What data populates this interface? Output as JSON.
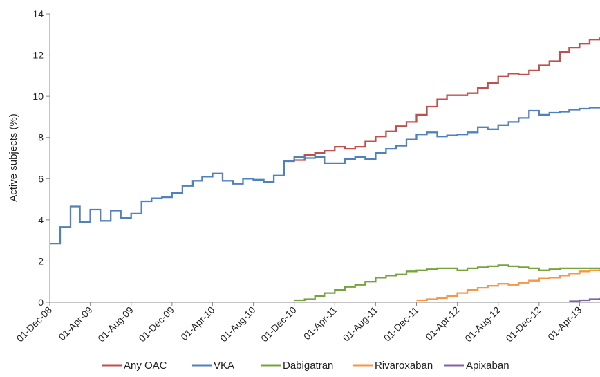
{
  "chart_data": {
    "type": "line",
    "step": true,
    "title": "",
    "xlabel": "",
    "ylabel": "Active subjects (%)",
    "ylim": [
      0,
      14
    ],
    "xlim": [
      "2008-12-01",
      "2013-06-01"
    ],
    "y_ticks": [
      "0",
      "2",
      "4",
      "6",
      "8",
      "10",
      "12",
      "14"
    ],
    "x_ticks": [
      {
        "date": "2008-12-01",
        "label": "01-Dec-08"
      },
      {
        "date": "2009-04-01",
        "label": "01-Apr-09"
      },
      {
        "date": "2009-08-01",
        "label": "01-Aug-09"
      },
      {
        "date": "2009-12-01",
        "label": "01-Dec-09"
      },
      {
        "date": "2010-04-01",
        "label": "01-Apr-10"
      },
      {
        "date": "2010-08-01",
        "label": "01-Aug-10"
      },
      {
        "date": "2010-12-01",
        "label": "01-Dec-10"
      },
      {
        "date": "2011-04-01",
        "label": "01-Apr-11"
      },
      {
        "date": "2011-08-01",
        "label": "01-Aug-11"
      },
      {
        "date": "2011-12-01",
        "label": "01-Dec-11"
      },
      {
        "date": "2012-04-01",
        "label": "01-Apr-12"
      },
      {
        "date": "2012-08-01",
        "label": "01-Aug-12"
      },
      {
        "date": "2012-12-01",
        "label": "01-Dec-12"
      },
      {
        "date": "2013-04-01",
        "label": "01-Apr-13"
      }
    ],
    "grid": false,
    "legend_position": "bottom",
    "series": [
      {
        "name": "Any OAC",
        "color": "#c0504d",
        "x": [
          "2010-12-01",
          "2011-01-01",
          "2011-02-01",
          "2011-03-01",
          "2011-04-01",
          "2011-05-01",
          "2011-06-01",
          "2011-07-01",
          "2011-08-01",
          "2011-09-01",
          "2011-10-01",
          "2011-11-01",
          "2011-12-01",
          "2012-01-01",
          "2012-02-01",
          "2012-03-01",
          "2012-04-01",
          "2012-05-01",
          "2012-06-01",
          "2012-07-01",
          "2012-08-01",
          "2012-09-01",
          "2012-10-01",
          "2012-11-01",
          "2012-12-01",
          "2013-01-01",
          "2013-02-01",
          "2013-03-01",
          "2013-04-01",
          "2013-05-01",
          "2013-06-01"
        ],
        "y": [
          6.9,
          7.15,
          7.25,
          7.35,
          7.55,
          7.45,
          7.55,
          7.8,
          8.05,
          8.3,
          8.55,
          8.75,
          9.1,
          9.5,
          9.85,
          10.05,
          10.05,
          10.15,
          10.4,
          10.65,
          10.95,
          11.1,
          11.05,
          11.25,
          11.5,
          11.7,
          12.15,
          12.35,
          12.55,
          12.75,
          12.85
        ]
      },
      {
        "name": "VKA",
        "color": "#4f81bd",
        "x": [
          "2008-12-01",
          "2009-01-01",
          "2009-02-01",
          "2009-03-01",
          "2009-04-01",
          "2009-05-01",
          "2009-06-01",
          "2009-07-01",
          "2009-08-01",
          "2009-09-01",
          "2009-10-01",
          "2009-11-01",
          "2009-12-01",
          "2010-01-01",
          "2010-02-01",
          "2010-03-01",
          "2010-04-01",
          "2010-05-01",
          "2010-06-01",
          "2010-07-01",
          "2010-08-01",
          "2010-09-01",
          "2010-10-01",
          "2010-11-01",
          "2010-12-01",
          "2011-01-01",
          "2011-02-01",
          "2011-03-01",
          "2011-04-01",
          "2011-05-01",
          "2011-06-01",
          "2011-07-01",
          "2011-08-01",
          "2011-09-01",
          "2011-10-01",
          "2011-11-01",
          "2011-12-01",
          "2012-01-01",
          "2012-02-01",
          "2012-03-01",
          "2012-04-01",
          "2012-05-01",
          "2012-06-01",
          "2012-07-01",
          "2012-08-01",
          "2012-09-01",
          "2012-10-01",
          "2012-11-01",
          "2012-12-01",
          "2013-01-01",
          "2013-02-01",
          "2013-03-01",
          "2013-04-01",
          "2013-05-01",
          "2013-06-01"
        ],
        "y": [
          2.85,
          3.65,
          4.65,
          3.9,
          4.5,
          3.95,
          4.45,
          4.1,
          4.3,
          4.9,
          5.05,
          5.1,
          5.3,
          5.65,
          5.9,
          6.1,
          6.25,
          5.9,
          5.75,
          6.0,
          5.95,
          5.85,
          6.15,
          6.85,
          7.05,
          7.0,
          7.05,
          6.75,
          6.75,
          6.95,
          7.05,
          6.95,
          7.25,
          7.45,
          7.6,
          7.9,
          8.15,
          8.25,
          8.05,
          8.1,
          8.15,
          8.25,
          8.5,
          8.4,
          8.6,
          8.75,
          8.95,
          9.3,
          9.1,
          9.2,
          9.25,
          9.35,
          9.4,
          9.45,
          9.45
        ]
      },
      {
        "name": "Dabigatran",
        "color": "#77a33e",
        "x": [
          "2010-12-01",
          "2011-01-01",
          "2011-02-01",
          "2011-03-01",
          "2011-04-01",
          "2011-05-01",
          "2011-06-01",
          "2011-07-01",
          "2011-08-01",
          "2011-09-01",
          "2011-10-01",
          "2011-11-01",
          "2011-12-01",
          "2012-01-01",
          "2012-02-01",
          "2012-03-01",
          "2012-04-01",
          "2012-05-01",
          "2012-06-01",
          "2012-07-01",
          "2012-08-01",
          "2012-09-01",
          "2012-10-01",
          "2012-11-01",
          "2012-12-01",
          "2013-01-01",
          "2013-02-01",
          "2013-03-01",
          "2013-04-01",
          "2013-05-01",
          "2013-06-01"
        ],
        "y": [
          0.1,
          0.15,
          0.3,
          0.45,
          0.6,
          0.75,
          0.85,
          1.0,
          1.2,
          1.3,
          1.35,
          1.5,
          1.55,
          1.6,
          1.65,
          1.65,
          1.55,
          1.65,
          1.7,
          1.75,
          1.8,
          1.75,
          1.7,
          1.65,
          1.55,
          1.6,
          1.65,
          1.65,
          1.65,
          1.65,
          1.65
        ]
      },
      {
        "name": "Rivaroxaban",
        "color": "#f79646",
        "x": [
          "2011-12-01",
          "2012-01-01",
          "2012-02-01",
          "2012-03-01",
          "2012-04-01",
          "2012-05-01",
          "2012-06-01",
          "2012-07-01",
          "2012-08-01",
          "2012-09-01",
          "2012-10-01",
          "2012-11-01",
          "2012-12-01",
          "2013-01-01",
          "2013-02-01",
          "2013-03-01",
          "2013-04-01",
          "2013-05-01",
          "2013-06-01"
        ],
        "y": [
          0.1,
          0.15,
          0.2,
          0.3,
          0.45,
          0.6,
          0.7,
          0.8,
          0.9,
          0.85,
          0.95,
          1.05,
          1.15,
          1.2,
          1.3,
          1.4,
          1.5,
          1.55,
          1.6
        ]
      },
      {
        "name": "Apixaban",
        "color": "#8064a2",
        "x": [
          "2013-03-01",
          "2013-04-01",
          "2013-05-01",
          "2013-06-01"
        ],
        "y": [
          0.05,
          0.1,
          0.15,
          0.2
        ]
      }
    ]
  }
}
